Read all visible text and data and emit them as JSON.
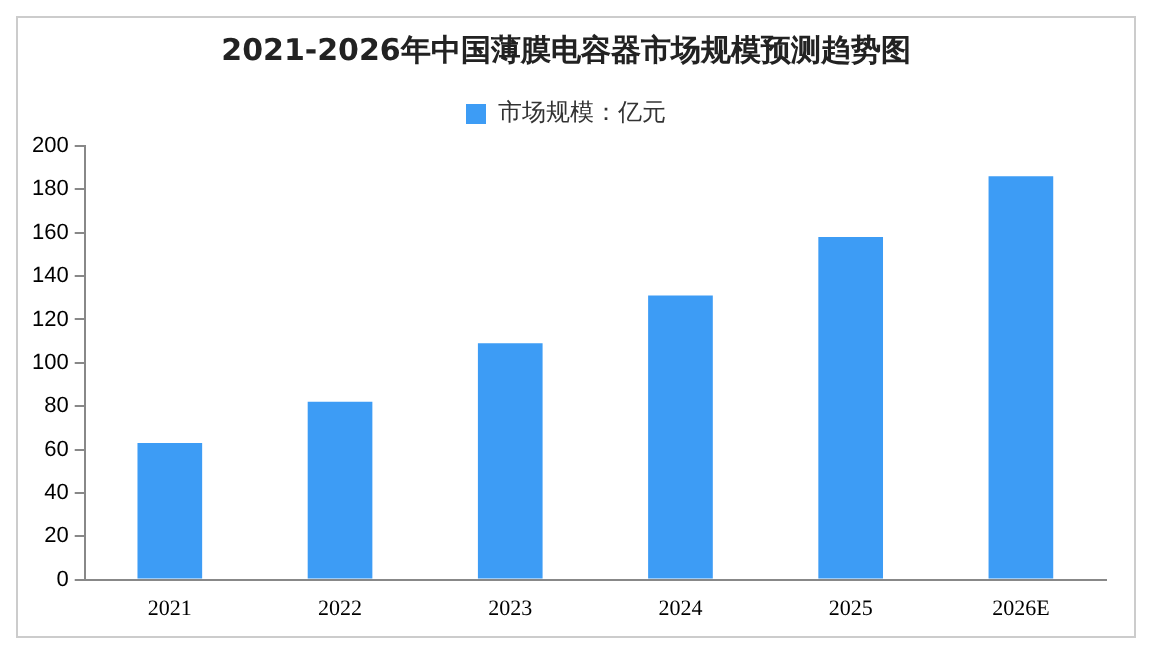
{
  "chart_data": {
    "type": "bar",
    "title": "2021-2026年中国薄膜电容器市场规模预测趋势图",
    "categories": [
      "2021",
      "2022",
      "2023",
      "2024",
      "2025",
      "2026E"
    ],
    "series": [
      {
        "name": "市场规模：亿元",
        "color": "#3d9cf5",
        "values": [
          63,
          82,
          109,
          131,
          158,
          186
        ]
      }
    ],
    "ylim": [
      0,
      200
    ],
    "yticks": [
      0,
      20,
      40,
      60,
      80,
      100,
      120,
      140,
      160,
      180,
      200
    ],
    "grid": false,
    "legend": "top"
  }
}
